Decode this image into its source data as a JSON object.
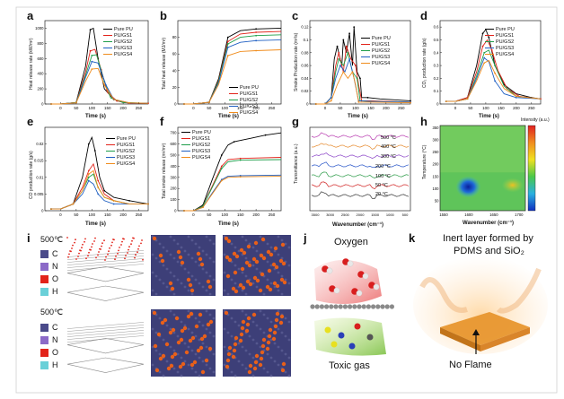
{
  "labels": {
    "a": "a",
    "b": "b",
    "c": "c",
    "d": "d",
    "e": "e",
    "f": "f",
    "g": "g",
    "h": "h",
    "i": "i",
    "j": "j",
    "k": "k"
  },
  "legend_series": [
    "Pure PU",
    "PU/GS1",
    "PU/GS2",
    "PU/GS3",
    "PU/GS4"
  ],
  "colors": {
    "pure": "#000000",
    "gs1": "#e2231a",
    "gs2": "#1e9e4a",
    "gs3": "#1f5fc2",
    "gs4": "#f08c1c"
  },
  "axes": {
    "a_y": "Heat release rate (kW/m²)",
    "b_y": "Total heat release (MJ/m²)",
    "c_y": "Smoke Production rate (m²/s)",
    "d_y": "CO₂ production rate (g/s)",
    "e_y": "CO production rate (g/s)",
    "f_y": "Total smoke release (m²/m²)",
    "g_y": "Transmittance (a.u.)",
    "h_y": "Temperature (°C)",
    "time_x": "Time (s)",
    "wave_x": "Wavenumber (cm⁻¹)",
    "intensity": "Intensity (a.u.)"
  },
  "g_temps": [
    "500 °C",
    "400 °C",
    "300 °C",
    "200 °C",
    "100 °C",
    "50 °C",
    "20 °C"
  ],
  "g_colors": [
    "#b83bb0",
    "#e68a2e",
    "#8c46c8",
    "#2855c8",
    "#2e9c4a",
    "#d02020",
    "#333333"
  ],
  "i_panel": {
    "temp_top": "500℃",
    "temp_bottom": "500℃",
    "elements": [
      {
        "sym": "C",
        "color": "#4a4a8a"
      },
      {
        "sym": "N",
        "color": "#8c6ac8"
      },
      {
        "sym": "O",
        "color": "#e2231a"
      },
      {
        "sym": "H",
        "color": "#6ad0d8"
      }
    ]
  },
  "j_panel": {
    "top": "Oxygen",
    "bottom": "Toxic gas"
  },
  "k_panel": {
    "title_line1": "Inert layer formed by",
    "title_line2": "PDMS and SiO₂",
    "bottom": "No Flame"
  },
  "chart_data": [
    {
      "type": "line",
      "panel": "a",
      "xlabel": "Time (s)",
      "ylabel": "Heat release rate (kW/m²)",
      "xlim": [
        -50,
        280
      ],
      "ylim": [
        0,
        1100
      ],
      "series": [
        {
          "name": "Pure PU",
          "x": [
            -30,
            0,
            50,
            80,
            95,
            105,
            120,
            140,
            170,
            200,
            250,
            280
          ],
          "values": [
            0,
            0,
            20,
            500,
            980,
            1000,
            600,
            200,
            60,
            20,
            10,
            10
          ]
        },
        {
          "name": "PU/GS1",
          "x": [
            -30,
            0,
            50,
            80,
            95,
            110,
            130,
            150,
            180,
            220,
            280
          ],
          "values": [
            0,
            0,
            20,
            420,
            700,
            720,
            450,
            150,
            40,
            10,
            10
          ]
        },
        {
          "name": "PU/GS2",
          "x": [
            -30,
            0,
            50,
            80,
            100,
            115,
            140,
            160,
            200,
            280
          ],
          "values": [
            0,
            0,
            20,
            380,
            640,
            650,
            300,
            80,
            20,
            10
          ]
        },
        {
          "name": "PU/GS3",
          "x": [
            -30,
            0,
            50,
            80,
            100,
            120,
            145,
            170,
            220,
            280
          ],
          "values": [
            0,
            0,
            15,
            350,
            560,
            540,
            250,
            60,
            15,
            10
          ]
        },
        {
          "name": "PU/GS4",
          "x": [
            -30,
            0,
            50,
            80,
            100,
            120,
            140,
            170,
            220,
            280
          ],
          "values": [
            0,
            0,
            15,
            300,
            460,
            470,
            250,
            60,
            15,
            10
          ]
        }
      ]
    },
    {
      "type": "line",
      "panel": "b",
      "xlabel": "Time (s)",
      "ylabel": "Total heat release (MJ/m²)",
      "xlim": [
        -50,
        280
      ],
      "ylim": [
        0,
        100
      ],
      "series": [
        {
          "name": "Pure PU",
          "x": [
            -30,
            0,
            50,
            80,
            110,
            150,
            200,
            280
          ],
          "values": [
            0,
            0,
            2,
            30,
            80,
            88,
            90,
            91
          ]
        },
        {
          "name": "PU/GS1",
          "x": [
            -30,
            0,
            50,
            80,
            110,
            150,
            200,
            280
          ],
          "values": [
            0,
            0,
            2,
            28,
            75,
            84,
            86,
            87
          ]
        },
        {
          "name": "PU/GS2",
          "x": [
            -30,
            0,
            50,
            80,
            110,
            150,
            200,
            280
          ],
          "values": [
            0,
            0,
            2,
            27,
            72,
            80,
            82,
            83
          ]
        },
        {
          "name": "PU/GS3",
          "x": [
            -30,
            0,
            50,
            80,
            110,
            150,
            200,
            280
          ],
          "values": [
            0,
            0,
            2,
            25,
            68,
            74,
            76,
            77
          ]
        },
        {
          "name": "PU/GS4",
          "x": [
            -30,
            0,
            50,
            80,
            110,
            150,
            200,
            280
          ],
          "values": [
            0,
            0,
            2,
            23,
            58,
            63,
            64,
            65
          ]
        }
      ]
    },
    {
      "type": "line",
      "panel": "c",
      "xlabel": "Time (s)",
      "ylabel": "Smoke Production rate (m²/s)",
      "xlim": [
        -50,
        280
      ],
      "ylim": [
        0,
        0.13
      ],
      "series": [
        {
          "name": "Pure PU",
          "x": [
            -30,
            0,
            20,
            30,
            40,
            55,
            60,
            70,
            80,
            90,
            95,
            105,
            115,
            120,
            140,
            180,
            280
          ],
          "values": [
            0,
            0,
            0.01,
            0.07,
            0.09,
            0.06,
            0.1,
            0.08,
            0.11,
            0.06,
            0.12,
            0.05,
            0.04,
            0.01,
            0.01,
            0.008,
            0.005
          ]
        },
        {
          "name": "PU/GS1",
          "x": [
            -30,
            0,
            20,
            35,
            45,
            60,
            70,
            85,
            100,
            110,
            120,
            150,
            280
          ],
          "values": [
            0,
            0,
            0.01,
            0.06,
            0.08,
            0.05,
            0.09,
            0.07,
            0.06,
            0.03,
            0.005,
            0.005,
            0.003
          ]
        },
        {
          "name": "PU/GS2",
          "x": [
            -30,
            0,
            20,
            35,
            45,
            60,
            75,
            90,
            105,
            115,
            150,
            280
          ],
          "values": [
            0,
            0,
            0.01,
            0.05,
            0.07,
            0.06,
            0.08,
            0.05,
            0.04,
            0.005,
            0.004,
            0.003
          ]
        },
        {
          "name": "PU/GS3",
          "x": [
            -30,
            0,
            20,
            35,
            50,
            65,
            80,
            95,
            110,
            150,
            280
          ],
          "values": [
            0,
            0,
            0.01,
            0.04,
            0.06,
            0.05,
            0.07,
            0.04,
            0.005,
            0.004,
            0.003
          ]
        },
        {
          "name": "PU/GS4",
          "x": [
            -30,
            0,
            20,
            40,
            60,
            75,
            90,
            100,
            110,
            150,
            280
          ],
          "values": [
            0,
            0,
            0.005,
            0.03,
            0.05,
            0.04,
            0.05,
            0.03,
            0.003,
            0.003,
            0.002
          ]
        }
      ]
    },
    {
      "type": "line",
      "panel": "d",
      "xlabel": "Time (s)",
      "ylabel": "CO₂ production rate (g/s)",
      "xlim": [
        -50,
        280
      ],
      "ylim": [
        0,
        0.65
      ],
      "series": [
        {
          "name": "Pure PU",
          "x": [
            -30,
            0,
            40,
            70,
            90,
            100,
            110,
            130,
            160,
            200,
            250,
            280
          ],
          "values": [
            0.02,
            0.02,
            0.05,
            0.3,
            0.55,
            0.58,
            0.52,
            0.3,
            0.15,
            0.08,
            0.05,
            0.04
          ]
        },
        {
          "name": "PU/GS1",
          "x": [
            -30,
            0,
            40,
            70,
            90,
            105,
            120,
            140,
            170,
            210,
            280
          ],
          "values": [
            0.02,
            0.02,
            0.05,
            0.25,
            0.45,
            0.5,
            0.42,
            0.26,
            0.12,
            0.06,
            0.04
          ]
        },
        {
          "name": "PU/GS2",
          "x": [
            -30,
            0,
            40,
            70,
            95,
            110,
            130,
            160,
            200,
            280
          ],
          "values": [
            0.02,
            0.02,
            0.04,
            0.22,
            0.4,
            0.42,
            0.3,
            0.14,
            0.06,
            0.04
          ]
        },
        {
          "name": "PU/GS3",
          "x": [
            -30,
            0,
            40,
            70,
            95,
            110,
            130,
            160,
            200,
            280
          ],
          "values": [
            0.02,
            0.02,
            0.04,
            0.2,
            0.36,
            0.33,
            0.18,
            0.08,
            0.05,
            0.04
          ]
        },
        {
          "name": "PU/GS4",
          "x": [
            -30,
            0,
            40,
            70,
            95,
            110,
            130,
            160,
            200,
            280
          ],
          "values": [
            0.02,
            0.02,
            0.04,
            0.18,
            0.32,
            0.34,
            0.24,
            0.12,
            0.06,
            0.04
          ]
        }
      ]
    },
    {
      "type": "line",
      "panel": "e",
      "xlabel": "Time (s)",
      "ylabel": "CO production rate (g/s)",
      "xlim": [
        -50,
        280
      ],
      "ylim": [
        0,
        0.025
      ],
      "series": [
        {
          "name": "Pure PU",
          "x": [
            -30,
            0,
            40,
            70,
            90,
            100,
            110,
            125,
            140,
            170,
            220,
            280
          ],
          "values": [
            0.0005,
            0.0005,
            0.002,
            0.01,
            0.02,
            0.022,
            0.018,
            0.01,
            0.006,
            0.004,
            0.003,
            0.002
          ]
        },
        {
          "name": "PU/GS1",
          "x": [
            -30,
            0,
            40,
            70,
            90,
            105,
            120,
            140,
            170,
            220,
            280
          ],
          "values": [
            0.0005,
            0.0005,
            0.002,
            0.007,
            0.012,
            0.014,
            0.009,
            0.005,
            0.003,
            0.002,
            0.002
          ]
        },
        {
          "name": "PU/GS2",
          "x": [
            -30,
            0,
            40,
            70,
            90,
            105,
            120,
            140,
            170,
            220,
            280
          ],
          "values": [
            0.0005,
            0.0005,
            0.002,
            0.006,
            0.01,
            0.011,
            0.007,
            0.004,
            0.003,
            0.002,
            0.002
          ]
        },
        {
          "name": "PU/GS3",
          "x": [
            -30,
            0,
            40,
            70,
            90,
            105,
            120,
            140,
            170,
            220,
            280
          ],
          "values": [
            0.0005,
            0.0005,
            0.002,
            0.005,
            0.009,
            0.008,
            0.005,
            0.003,
            0.002,
            0.002,
            0.002
          ]
        },
        {
          "name": "PU/GS4",
          "x": [
            -30,
            0,
            40,
            70,
            90,
            105,
            120,
            140,
            170,
            220,
            280
          ],
          "values": [
            0.0005,
            0.0005,
            0.002,
            0.006,
            0.011,
            0.012,
            0.007,
            0.004,
            0.003,
            0.002,
            0.002
          ]
        }
      ]
    },
    {
      "type": "line",
      "panel": "f",
      "xlabel": "Time (s)",
      "ylabel": "Total smoke release (m²/m²)",
      "xlim": [
        -50,
        280
      ],
      "ylim": [
        0,
        750
      ],
      "series": [
        {
          "name": "Pure PU",
          "x": [
            -30,
            0,
            30,
            60,
            90,
            110,
            130,
            180,
            230,
            280
          ],
          "values": [
            0,
            0,
            50,
            280,
            500,
            590,
            620,
            650,
            680,
            700
          ]
        },
        {
          "name": "PU/GS1",
          "x": [
            -30,
            0,
            30,
            60,
            90,
            110,
            150,
            280
          ],
          "values": [
            0,
            0,
            40,
            220,
            400,
            460,
            470,
            480
          ]
        },
        {
          "name": "PU/GS2",
          "x": [
            -30,
            0,
            30,
            60,
            90,
            110,
            150,
            280
          ],
          "values": [
            0,
            0,
            40,
            210,
            380,
            440,
            455,
            460
          ]
        },
        {
          "name": "PU/GS3",
          "x": [
            -30,
            0,
            30,
            60,
            90,
            110,
            150,
            280
          ],
          "values": [
            0,
            0,
            30,
            160,
            280,
            310,
            315,
            320
          ]
        },
        {
          "name": "PU/GS4",
          "x": [
            -30,
            0,
            30,
            60,
            90,
            110,
            150,
            280
          ],
          "values": [
            0,
            0,
            30,
            150,
            270,
            300,
            305,
            310
          ]
        }
      ]
    }
  ]
}
